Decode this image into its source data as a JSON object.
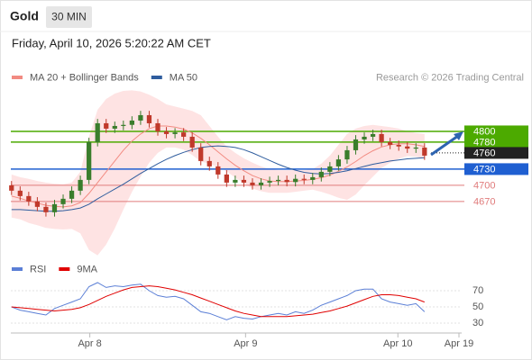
{
  "header": {
    "title": "Gold",
    "interval": "30 MIN",
    "datetime": "Friday, April 10, 2026 5:20:22 AM CET"
  },
  "chart_data": [
    {
      "type": "candlestick",
      "credit": "Research © 2026 Trading Central",
      "xlim": [
        0,
        52.5
      ],
      "xticks": [
        {
          "value": 9.6,
          "label": "Apr 8"
        },
        {
          "value": 27.7,
          "label": "Apr 9"
        },
        {
          "value": 45.4,
          "label": "Apr 10"
        },
        {
          "value": 52.5,
          "label": "Apr 19"
        }
      ],
      "ylim": [
        4568,
        4885
      ],
      "up_color": "#3a7d2c",
      "down_color": "#c0392b",
      "open": [
        4700,
        4690,
        4680,
        4670,
        4660,
        4650,
        4665,
        4675,
        4690,
        4710,
        4780,
        4815,
        4805,
        4810,
        4812,
        4820,
        4830,
        4815,
        4800,
        4795,
        4798,
        4790,
        4770,
        4745,
        4735,
        4720,
        4705,
        4710,
        4705,
        4700,
        4705,
        4708,
        4710,
        4706,
        4712,
        4710,
        4715,
        4725,
        4735,
        4748,
        4765,
        4785,
        4790,
        4795,
        4780,
        4775,
        4772,
        4768,
        4770
      ],
      "high": [
        4708,
        4698,
        4688,
        4678,
        4668,
        4673,
        4683,
        4698,
        4718,
        4788,
        4823,
        4823,
        4818,
        4820,
        4828,
        4838,
        4838,
        4823,
        4808,
        4806,
        4806,
        4798,
        4778,
        4753,
        4743,
        4728,
        4718,
        4718,
        4713,
        4713,
        4716,
        4718,
        4718,
        4720,
        4720,
        4723,
        4733,
        4743,
        4756,
        4773,
        4793,
        4798,
        4803,
        4803,
        4788,
        4783,
        4780,
        4778,
        4778
      ],
      "low": [
        4682,
        4672,
        4662,
        4652,
        4642,
        4642,
        4657,
        4667,
        4682,
        4702,
        4772,
        4797,
        4797,
        4802,
        4804,
        4812,
        4807,
        4792,
        4787,
        4787,
        4782,
        4762,
        4737,
        4727,
        4712,
        4697,
        4697,
        4697,
        4692,
        4692,
        4697,
        4700,
        4698,
        4698,
        4702,
        4702,
        4707,
        4717,
        4727,
        4740,
        4757,
        4777,
        4782,
        4772,
        4767,
        4764,
        4760,
        4760,
        4747
      ],
      "close": [
        4690,
        4680,
        4670,
        4660,
        4650,
        4665,
        4675,
        4690,
        4710,
        4780,
        4815,
        4805,
        4810,
        4812,
        4820,
        4830,
        4815,
        4800,
        4795,
        4798,
        4790,
        4770,
        4745,
        4735,
        4720,
        4705,
        4710,
        4705,
        4700,
        4705,
        4708,
        4710,
        4706,
        4712,
        4710,
        4715,
        4725,
        4735,
        4748,
        4765,
        4785,
        4790,
        4795,
        4780,
        4775,
        4772,
        4768,
        4770,
        4755
      ],
      "series": [
        {
          "name": "MA 20 + Bollinger Bands",
          "color": "#f28b82",
          "band_color": "#fdd9d9",
          "values": [
            4680,
            4676,
            4671,
            4667,
            4663,
            4661,
            4660,
            4662,
            4668,
            4685,
            4705,
            4725,
            4745,
            4765,
            4782,
            4795,
            4805,
            4810,
            4810,
            4808,
            4804,
            4797,
            4787,
            4775,
            4762,
            4749,
            4737,
            4727,
            4718,
            4712,
            4708,
            4707,
            4707,
            4708,
            4709,
            4711,
            4714,
            4719,
            4726,
            4734,
            4744,
            4755,
            4764,
            4771,
            4775,
            4777,
            4777,
            4775,
            4772
          ],
          "upper": [
            4720,
            4715,
            4712,
            4708,
            4705,
            4703,
            4702,
            4705,
            4725,
            4790,
            4840,
            4860,
            4870,
            4875,
            4876,
            4874,
            4868,
            4860,
            4850,
            4846,
            4842,
            4838,
            4830,
            4810,
            4790,
            4772,
            4760,
            4750,
            4742,
            4735,
            4730,
            4728,
            4728,
            4728,
            4728,
            4730,
            4740,
            4755,
            4775,
            4795,
            4805,
            4810,
            4812,
            4810,
            4808,
            4805,
            4800,
            4797,
            4795
          ],
          "lower": [
            4640,
            4637,
            4630,
            4626,
            4621,
            4619,
            4618,
            4619,
            4611,
            4580,
            4570,
            4590,
            4620,
            4655,
            4688,
            4716,
            4742,
            4760,
            4770,
            4770,
            4766,
            4756,
            4744,
            4740,
            4734,
            4726,
            4714,
            4704,
            4694,
            4689,
            4686,
            4686,
            4686,
            4688,
            4690,
            4692,
            4688,
            4683,
            4677,
            4673,
            4683,
            4700,
            4716,
            4732,
            4742,
            4749,
            4754,
            4753,
            4749
          ]
        },
        {
          "name": "MA 50",
          "color": "#2f5d9e",
          "values": [
            4655,
            4655,
            4654,
            4653,
            4652,
            4652,
            4653,
            4655,
            4658,
            4665,
            4675,
            4684,
            4693,
            4702,
            4712,
            4722,
            4731,
            4740,
            4748,
            4755,
            4761,
            4766,
            4770,
            4772,
            4773,
            4772,
            4770,
            4766,
            4760,
            4753,
            4746,
            4739,
            4733,
            4728,
            4724,
            4722,
            4721,
            4722,
            4724,
            4727,
            4731,
            4735,
            4739,
            4742,
            4745,
            4747,
            4749,
            4750,
            4751
          ]
        }
      ],
      "levels": [
        {
          "value": 4800,
          "color": "#4caa00",
          "style": "solid",
          "boxed": true
        },
        {
          "value": 4780,
          "color": "#4caa00",
          "style": "solid",
          "boxed": true
        },
        {
          "value": 4760,
          "color": "#222222",
          "style": "dotted",
          "boxed": true
        },
        {
          "value": 4730,
          "color": "#1f5fd1",
          "style": "solid",
          "boxed": true
        },
        {
          "value": 4700,
          "color": "#e07b7b",
          "style": "solid",
          "boxed": false
        },
        {
          "value": 4670,
          "color": "#e07b7b",
          "style": "solid",
          "boxed": false
        }
      ]
    },
    {
      "type": "line",
      "xlim": [
        0,
        52.5
      ],
      "ylim": [
        20,
        85
      ],
      "yticks": [
        30,
        50,
        70
      ],
      "grid": true,
      "series": [
        {
          "name": "RSI",
          "color": "#5b7fd6",
          "values": [
            50,
            46,
            44,
            42,
            40,
            48,
            52,
            56,
            60,
            75,
            80,
            74,
            76,
            75,
            77,
            78,
            70,
            64,
            62,
            63,
            60,
            52,
            44,
            42,
            38,
            34,
            38,
            36,
            35,
            38,
            40,
            42,
            40,
            44,
            42,
            46,
            52,
            56,
            60,
            64,
            70,
            72,
            72,
            60,
            56,
            54,
            52,
            54,
            44
          ]
        },
        {
          "name": "9MA",
          "color": "#e00000",
          "values": [
            50,
            49,
            48,
            47,
            46,
            45,
            46,
            47,
            49,
            53,
            58,
            63,
            67,
            71,
            74,
            75,
            76,
            75,
            73,
            71,
            68,
            65,
            61,
            57,
            53,
            49,
            45,
            42,
            40,
            38,
            38,
            38,
            38,
            39,
            40,
            41,
            43,
            45,
            48,
            51,
            55,
            59,
            63,
            65,
            65,
            64,
            62,
            60,
            56
          ]
        }
      ]
    }
  ]
}
